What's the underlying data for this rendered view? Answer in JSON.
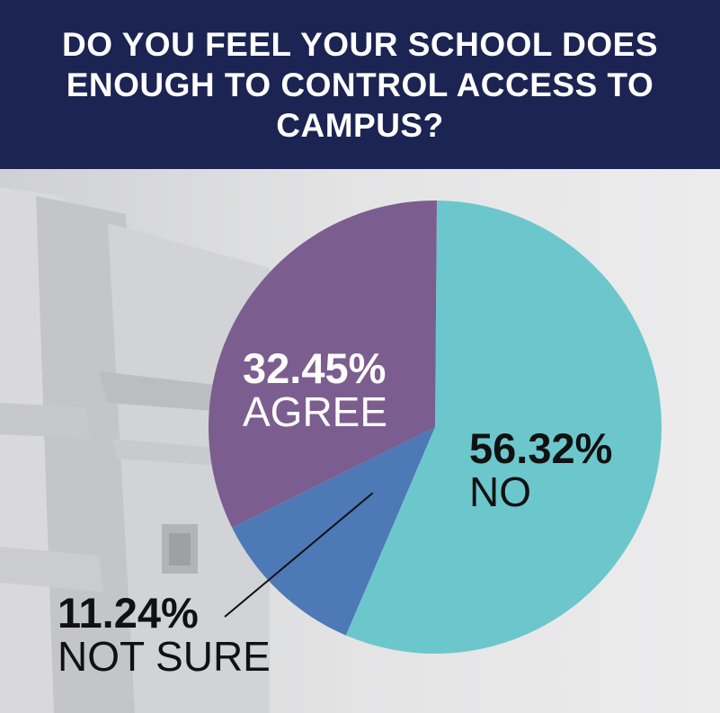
{
  "title": "DO YOU FEEL YOUR SCHOOL DOES ENOUGH TO CONTROL ACCESS TO CAMPUS?",
  "chart_data": {
    "type": "pie",
    "title": "DO YOU FEEL YOUR SCHOOL DOES ENOUGH TO CONTROL ACCESS TO CAMPUS?",
    "slices": [
      {
        "label": "NO",
        "value": 56.32,
        "display": "56.32%",
        "color": "#6cc7cc"
      },
      {
        "label": "NOT SURE",
        "value": 11.24,
        "display": "11.24%",
        "color": "#4d79b6"
      },
      {
        "label": "AGREE",
        "value": 32.45,
        "display": "32.45%",
        "color": "#7b5e8f"
      }
    ]
  },
  "colors": {
    "header_bg": "#1b2452",
    "title_text": "#ffffff",
    "background": "#e9e9ea"
  }
}
